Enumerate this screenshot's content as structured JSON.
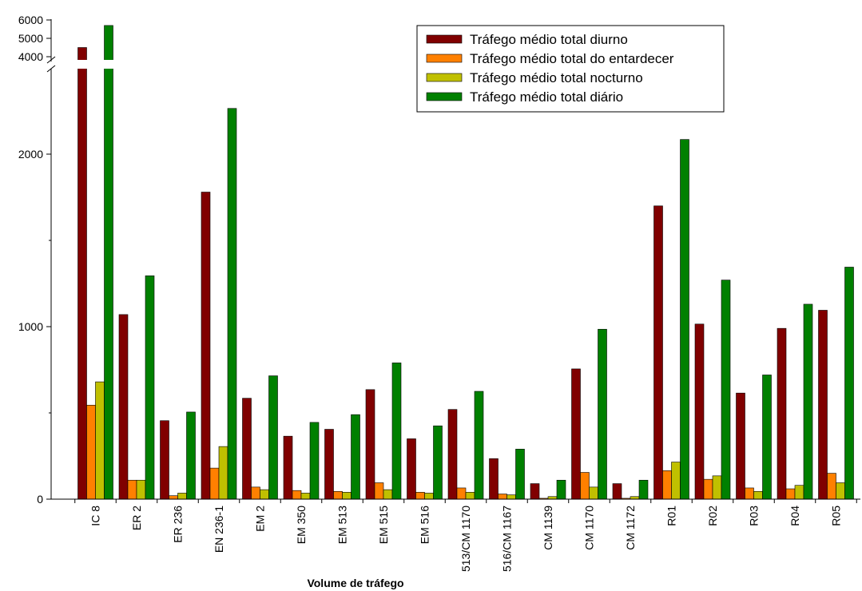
{
  "chart_data": {
    "type": "bar",
    "title": "",
    "xlabel": "Volume de tráfego",
    "ylabel": "",
    "y_axis_break": {
      "lower_range": [
        0,
        2500
      ],
      "upper_range": [
        4000,
        6000
      ]
    },
    "yticks_lower": [
      0,
      1000,
      2000
    ],
    "yticks_upper": [
      4000,
      5000,
      6000
    ],
    "legend_position": "top-right",
    "categories": [
      "IC 8",
      "ER 2",
      "ER 236",
      "EN 236-1",
      "EM 2",
      "EM 350",
      "EM 513",
      "EM 515",
      "EM 516",
      "513/CM 1170",
      "516/CM 1167",
      "CM 1139",
      "CM 1170",
      "CM 1172",
      "R01",
      "R02",
      "R03",
      "R04",
      "R05"
    ],
    "series": [
      {
        "name": "Tráfego médio total diurno",
        "color": "#800000",
        "values": [
          4500,
          1070,
          455,
          1780,
          585,
          365,
          405,
          635,
          350,
          520,
          235,
          90,
          755,
          90,
          1700,
          1015,
          615,
          990,
          1095
        ]
      },
      {
        "name": "Tráfego médio total do entardecer",
        "color": "#FF8000",
        "values": [
          545,
          110,
          20,
          180,
          70,
          50,
          45,
          95,
          40,
          65,
          30,
          5,
          155,
          5,
          165,
          115,
          65,
          60,
          150
        ]
      },
      {
        "name": "Tráfego médio total nocturno",
        "color": "#C0C000",
        "values": [
          680,
          110,
          35,
          305,
          55,
          35,
          40,
          55,
          35,
          40,
          25,
          15,
          70,
          15,
          215,
          135,
          45,
          80,
          95
        ]
      },
      {
        "name": "Tráfego médio total diário",
        "color": "#008000",
        "values": [
          5700,
          1295,
          505,
          2265,
          715,
          445,
          490,
          790,
          425,
          625,
          290,
          110,
          985,
          110,
          2085,
          1270,
          720,
          1130,
          1345
        ]
      }
    ]
  }
}
